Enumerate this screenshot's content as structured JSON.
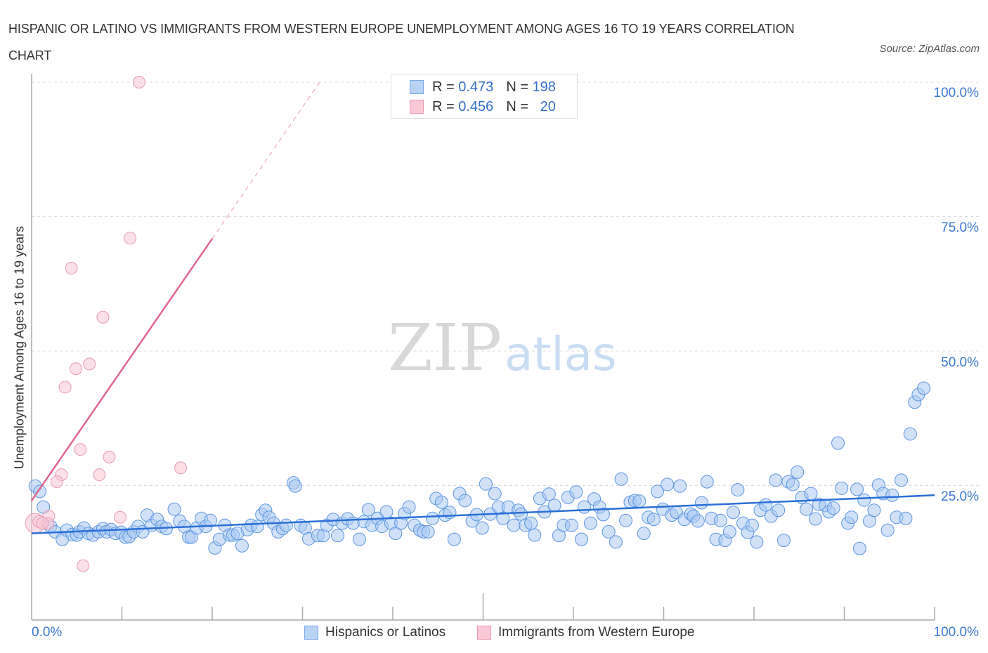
{
  "title": "HISPANIC OR LATINO VS IMMIGRANTS FROM WESTERN EUROPE UNEMPLOYMENT AMONG AGES 16 TO 19 YEARS CORRELATION CHART",
  "source": "Source: ZipAtlas.com",
  "watermark": {
    "zip": "ZIP",
    "atlas": "atlas"
  },
  "colors": {
    "blue": "#5b95e0",
    "blue_fill": "#a9c8f2",
    "blue_line": "#2a6fd6",
    "pink": "#e89ab5",
    "pink_fill": "#f7c6d6",
    "pink_line": "#e0668f",
    "axis_text": "#3b78d0"
  },
  "legend": {
    "series1": {
      "r_label": "R =",
      "r": "0.473",
      "n_label": "N =",
      "n": "198"
    },
    "series2": {
      "r_label": "R =",
      "r": "0.456",
      "n_label": "N =",
      "n": "20"
    }
  },
  "chart_data": {
    "type": "scatter",
    "title": "HISPANIC OR LATINO VS IMMIGRANTS FROM WESTERN EUROPE UNEMPLOYMENT AMONG AGES 16 TO 19 YEARS CORRELATION CHART",
    "xlabel": "",
    "ylabel": "Unemployment Among Ages 16 to 19 years",
    "xlim": [
      0,
      100
    ],
    "ylim": [
      0,
      100
    ],
    "x_tick_labels": [
      "0.0%",
      "100.0%"
    ],
    "y_tick_values": [
      25,
      50,
      75,
      100
    ],
    "y_tick_labels": [
      "25.0%",
      "50.0%",
      "75.0%",
      "100.0%"
    ],
    "grid": true,
    "legend_placement": "bottom",
    "series": [
      {
        "name": "Hispanics or Latinos",
        "r": 0.473,
        "n": 198,
        "trend": [
          [
            0,
            16.1
          ],
          [
            100,
            23.2
          ]
        ],
        "points": [
          [
            0.4,
            24.9
          ],
          [
            0.9,
            23.9
          ],
          [
            1.3,
            21.0
          ],
          [
            2.1,
            17.4
          ],
          [
            2.6,
            16.4
          ],
          [
            3.4,
            15.0
          ],
          [
            3.9,
            16.7
          ],
          [
            4.5,
            15.9
          ],
          [
            5.0,
            15.8
          ],
          [
            5.3,
            16.4
          ],
          [
            5.8,
            17.1
          ],
          [
            6.3,
            16.1
          ],
          [
            6.8,
            15.8
          ],
          [
            7.4,
            16.4
          ],
          [
            7.9,
            17.0
          ],
          [
            8.3,
            16.4
          ],
          [
            8.8,
            16.8
          ],
          [
            9.3,
            16.1
          ],
          [
            9.9,
            16.3
          ],
          [
            10.4,
            15.4
          ],
          [
            10.8,
            15.5
          ],
          [
            11.3,
            16.4
          ],
          [
            11.8,
            17.4
          ],
          [
            12.3,
            16.4
          ],
          [
            12.8,
            19.5
          ],
          [
            13.3,
            17.6
          ],
          [
            13.9,
            18.7
          ],
          [
            14.4,
            17.4
          ],
          [
            14.9,
            17.0
          ],
          [
            15.8,
            20.6
          ],
          [
            16.4,
            18.4
          ],
          [
            16.9,
            17.4
          ],
          [
            17.4,
            15.4
          ],
          [
            17.7,
            15.4
          ],
          [
            18.3,
            17.1
          ],
          [
            18.8,
            18.9
          ],
          [
            19.3,
            17.4
          ],
          [
            19.8,
            18.5
          ],
          [
            20.3,
            13.4
          ],
          [
            20.8,
            15.0
          ],
          [
            21.4,
            17.6
          ],
          [
            21.9,
            15.8
          ],
          [
            22.3,
            15.8
          ],
          [
            22.8,
            16.1
          ],
          [
            23.3,
            13.8
          ],
          [
            23.9,
            16.8
          ],
          [
            24.3,
            17.6
          ],
          [
            25.0,
            17.4
          ],
          [
            25.5,
            19.6
          ],
          [
            25.9,
            20.4
          ],
          [
            26.3,
            19.1
          ],
          [
            26.8,
            18.0
          ],
          [
            27.3,
            16.4
          ],
          [
            27.8,
            17.0
          ],
          [
            28.2,
            17.6
          ],
          [
            29.0,
            25.5
          ],
          [
            29.2,
            24.9
          ],
          [
            29.8,
            17.6
          ],
          [
            30.3,
            17.1
          ],
          [
            30.7,
            15.1
          ],
          [
            31.7,
            15.7
          ],
          [
            32.3,
            15.7
          ],
          [
            32.7,
            17.6
          ],
          [
            33.4,
            18.7
          ],
          [
            33.9,
            15.7
          ],
          [
            34.4,
            18.0
          ],
          [
            35.0,
            18.8
          ],
          [
            35.6,
            18.0
          ],
          [
            36.3,
            15.0
          ],
          [
            36.8,
            18.3
          ],
          [
            37.3,
            20.5
          ],
          [
            37.7,
            17.6
          ],
          [
            38.3,
            18.9
          ],
          [
            38.8,
            17.4
          ],
          [
            39.3,
            20.1
          ],
          [
            39.8,
            18.0
          ],
          [
            40.3,
            16.1
          ],
          [
            40.9,
            18.0
          ],
          [
            41.3,
            19.8
          ],
          [
            41.8,
            21.0
          ],
          [
            42.4,
            17.6
          ],
          [
            43.0,
            16.7
          ],
          [
            43.4,
            16.4
          ],
          [
            43.9,
            16.4
          ],
          [
            44.4,
            18.9
          ],
          [
            44.8,
            22.6
          ],
          [
            45.4,
            21.9
          ],
          [
            45.8,
            19.5
          ],
          [
            46.3,
            20.0
          ],
          [
            46.8,
            15.0
          ],
          [
            47.4,
            23.5
          ],
          [
            48.0,
            22.2
          ],
          [
            48.8,
            18.4
          ],
          [
            49.3,
            19.6
          ],
          [
            49.9,
            17.1
          ],
          [
            50.3,
            25.3
          ],
          [
            50.8,
            19.7
          ],
          [
            51.3,
            23.5
          ],
          [
            51.7,
            21.0
          ],
          [
            52.2,
            18.9
          ],
          [
            52.8,
            21.0
          ],
          [
            53.4,
            17.6
          ],
          [
            53.9,
            20.4
          ],
          [
            54.2,
            19.7
          ],
          [
            54.7,
            17.6
          ],
          [
            55.3,
            18.0
          ],
          [
            55.7,
            15.8
          ],
          [
            56.3,
            22.6
          ],
          [
            56.8,
            20.1
          ],
          [
            57.3,
            23.4
          ],
          [
            57.9,
            21.3
          ],
          [
            58.4,
            15.7
          ],
          [
            58.9,
            17.6
          ],
          [
            59.4,
            22.8
          ],
          [
            59.8,
            17.6
          ],
          [
            60.3,
            23.8
          ],
          [
            60.9,
            15.0
          ],
          [
            61.2,
            21.0
          ],
          [
            61.9,
            18.0
          ],
          [
            62.3,
            22.5
          ],
          [
            62.9,
            21.0
          ],
          [
            63.3,
            19.6
          ],
          [
            63.9,
            16.4
          ],
          [
            64.7,
            14.5
          ],
          [
            65.3,
            26.2
          ],
          [
            65.8,
            18.5
          ],
          [
            66.3,
            21.9
          ],
          [
            66.8,
            22.2
          ],
          [
            67.3,
            22.1
          ],
          [
            67.8,
            16.1
          ],
          [
            68.3,
            19.1
          ],
          [
            68.9,
            18.7
          ],
          [
            69.3,
            23.9
          ],
          [
            69.9,
            20.6
          ],
          [
            70.4,
            25.2
          ],
          [
            70.9,
            19.5
          ],
          [
            71.4,
            20.0
          ],
          [
            71.8,
            24.9
          ],
          [
            72.3,
            18.7
          ],
          [
            73.0,
            19.7
          ],
          [
            73.3,
            19.3
          ],
          [
            73.8,
            18.4
          ],
          [
            74.2,
            21.8
          ],
          [
            74.8,
            25.7
          ],
          [
            75.3,
            18.9
          ],
          [
            75.8,
            15.0
          ],
          [
            76.3,
            18.5
          ],
          [
            76.8,
            14.8
          ],
          [
            77.3,
            16.4
          ],
          [
            77.7,
            20.0
          ],
          [
            78.2,
            24.2
          ],
          [
            78.8,
            18.0
          ],
          [
            79.3,
            16.3
          ],
          [
            79.8,
            17.6
          ],
          [
            80.3,
            14.5
          ],
          [
            80.7,
            20.4
          ],
          [
            81.3,
            21.4
          ],
          [
            81.9,
            19.3
          ],
          [
            82.4,
            26.0
          ],
          [
            82.7,
            20.4
          ],
          [
            83.3,
            14.8
          ],
          [
            83.8,
            25.7
          ],
          [
            84.3,
            25.2
          ],
          [
            84.8,
            27.5
          ],
          [
            85.3,
            22.8
          ],
          [
            85.8,
            20.6
          ],
          [
            86.3,
            23.5
          ],
          [
            86.8,
            18.8
          ],
          [
            87.2,
            21.5
          ],
          [
            87.9,
            21.3
          ],
          [
            88.3,
            20.1
          ],
          [
            88.8,
            20.8
          ],
          [
            89.3,
            32.9
          ],
          [
            89.7,
            24.5
          ],
          [
            90.4,
            18.0
          ],
          [
            90.8,
            19.1
          ],
          [
            91.4,
            24.3
          ],
          [
            91.7,
            13.3
          ],
          [
            92.2,
            22.3
          ],
          [
            92.8,
            18.4
          ],
          [
            93.3,
            20.4
          ],
          [
            93.8,
            25.1
          ],
          [
            94.3,
            23.5
          ],
          [
            94.8,
            16.7
          ],
          [
            95.3,
            23.2
          ],
          [
            95.8,
            19.1
          ],
          [
            96.3,
            26.0
          ],
          [
            96.8,
            18.9
          ],
          [
            97.3,
            34.6
          ],
          [
            97.8,
            40.5
          ],
          [
            98.2,
            41.9
          ],
          [
            98.8,
            43.1
          ]
        ]
      },
      {
        "name": "Immigrants from Western Europe",
        "r": 0.456,
        "n": 20,
        "trend": [
          [
            0,
            22.2
          ],
          [
            20,
            70.9
          ]
        ],
        "trend_dashed_to": [
          31.9,
          100
        ],
        "points": [
          [
            11.9,
            100
          ],
          [
            10.9,
            71.0
          ],
          [
            4.4,
            65.4
          ],
          [
            7.9,
            56.3
          ],
          [
            6.4,
            47.6
          ],
          [
            4.9,
            46.7
          ],
          [
            3.7,
            43.3
          ],
          [
            5.4,
            31.7
          ],
          [
            8.6,
            30.3
          ],
          [
            16.5,
            28.3
          ],
          [
            3.3,
            27.0
          ],
          [
            7.5,
            27.0
          ],
          [
            2.8,
            25.7
          ],
          [
            9.8,
            19.1
          ],
          [
            5.7,
            10.1
          ],
          [
            0.4,
            18.0
          ],
          [
            0.8,
            18.3
          ],
          [
            1.9,
            19.3
          ],
          [
            1.8,
            17.9
          ],
          [
            1.2,
            18.0
          ]
        ]
      }
    ]
  }
}
